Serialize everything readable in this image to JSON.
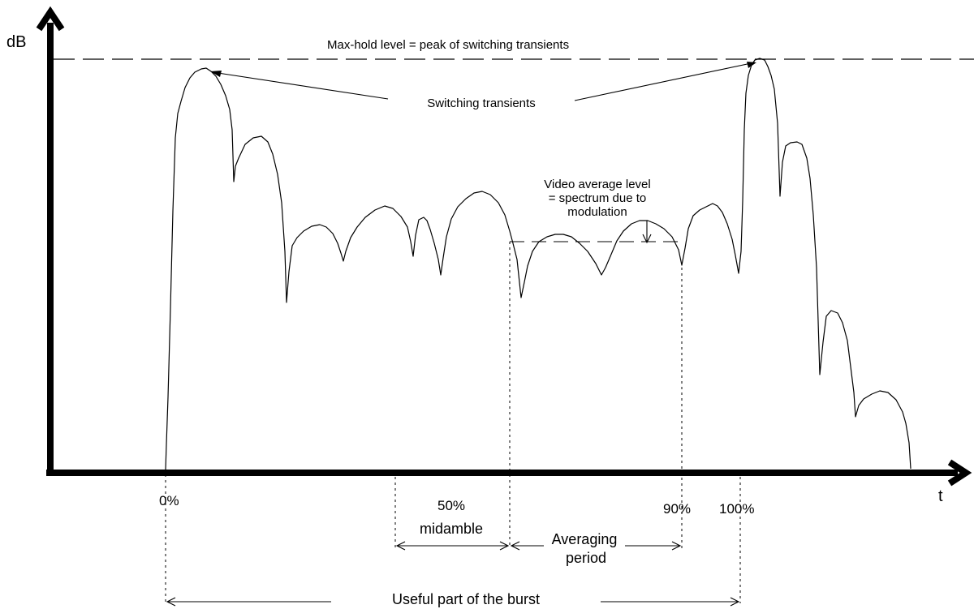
{
  "axes": {
    "y_label": "dB",
    "x_label": "t"
  },
  "annotations": {
    "max_hold": "Max-hold level = peak of switching transients",
    "switching": "Switching transients",
    "video_avg_line1": "Video average level",
    "video_avg_line2": "= spectrum due to",
    "video_avg_line3": "modulation",
    "useful_part": "Useful part of the burst",
    "averaging_line1": "Averaging",
    "averaging_line2": "period",
    "midamble": "midamble"
  },
  "ticks": {
    "p0": "0%",
    "p50": "50%",
    "p90": "90%",
    "p100": "100%"
  },
  "colors": {
    "ink": "#000000",
    "background": "#ffffff"
  }
}
